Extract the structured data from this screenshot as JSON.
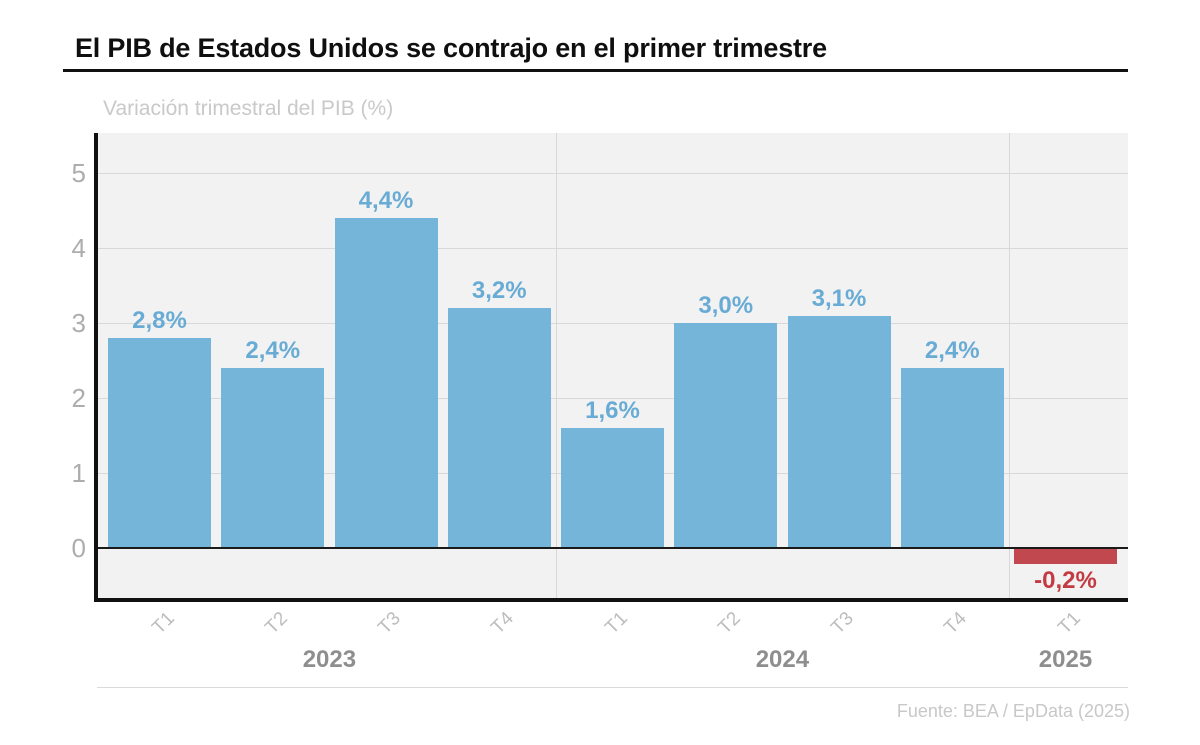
{
  "header": {
    "title": "El PIB de Estados Unidos se contrajo en el primer trimestre"
  },
  "footer": {
    "source": "Fuente: BEA / EpData (2025)"
  },
  "colors": {
    "positive_bar": "#76b5da",
    "positive_label": "#68abd5",
    "negative_bar": "#c0484e",
    "negative_label": "#c43a42",
    "plot_background": "#f2f2f2",
    "gridline": "#d8d8d8",
    "axis": "#111111",
    "ytick_text": "#adadad",
    "xtick_text": "#bdbdbd",
    "year_text": "#8e8e8e",
    "title_text": "#0f0f0f",
    "subtitle_text": "#c9c9c9",
    "source_text": "#c8c8c8"
  },
  "chart_data": {
    "type": "bar",
    "title": "El PIB de Estados Unidos se contrajo en el primer trimestre",
    "subtitle": "Variación trimestral del PIB (%)",
    "xlabel": "",
    "ylabel": "",
    "categories": [
      "T1",
      "T2",
      "T3",
      "T4",
      "T1",
      "T2",
      "T3",
      "T4",
      "T1"
    ],
    "values": [
      2.8,
      2.4,
      4.4,
      3.2,
      1.6,
      3.0,
      3.1,
      2.4,
      -0.2
    ],
    "value_labels": [
      "2,8%",
      "2,4%",
      "4,4%",
      "3,2%",
      "1,6%",
      "3,0%",
      "3,1%",
      "2,4%",
      "-0,2%"
    ],
    "groups": [
      {
        "label": "2023",
        "span": [
          0,
          3
        ]
      },
      {
        "label": "2024",
        "span": [
          4,
          7
        ]
      },
      {
        "label": "2025",
        "span": [
          8,
          8
        ]
      }
    ],
    "yticks": [
      0,
      1,
      2,
      3,
      4,
      5
    ],
    "ylim": [
      -0.68,
      5.52
    ],
    "grid": true,
    "legend": false,
    "source": "Fuente: BEA / EpData (2025)"
  }
}
